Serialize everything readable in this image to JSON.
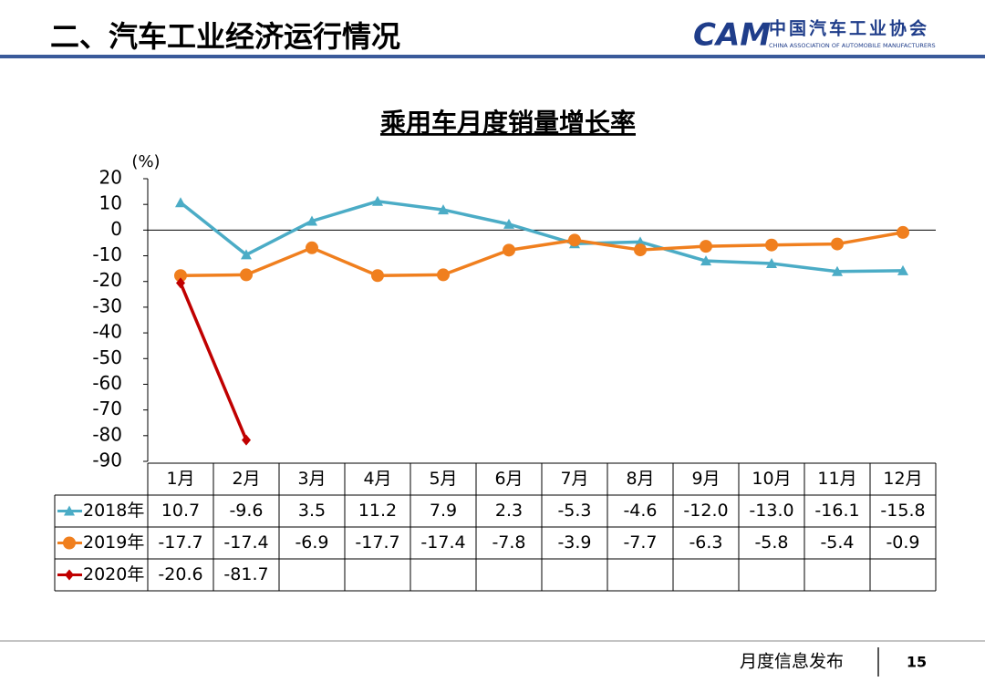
{
  "header": {
    "title": "二、汽车工业经济运行情况",
    "logo_mark": "CAM",
    "logo_cn": "中国汽车工业协会",
    "logo_en": "CHINA ASSOCIATION OF AUTOMOBILE MANUFACTURERS"
  },
  "footer": {
    "text": "月度信息发布",
    "page": 15
  },
  "chart_data": {
    "type": "line",
    "title": "乘用车月度销量增长率",
    "unit": "(%)",
    "categories": [
      "1月",
      "2月",
      "3月",
      "4月",
      "5月",
      "6月",
      "7月",
      "8月",
      "9月",
      "10月",
      "11月",
      "12月"
    ],
    "ylim": [
      -90,
      20
    ],
    "yticks": [
      20,
      10,
      0,
      -10,
      -20,
      -30,
      -40,
      -50,
      -60,
      -70,
      -80,
      -90
    ],
    "grid": false,
    "series": [
      {
        "name": "2018年",
        "color": "#4bacc6",
        "marker": "triangle",
        "values": [
          10.7,
          -9.6,
          3.5,
          11.2,
          7.9,
          2.3,
          -5.3,
          -4.6,
          -12.0,
          -13.0,
          -16.1,
          -15.8
        ],
        "value_labels": [
          "10.7",
          "-9.6",
          "3.5",
          "11.2",
          "7.9",
          "2.3",
          "-5.3",
          "-4.6",
          "-12.0",
          "-13.0",
          "-16.1",
          "-15.8"
        ]
      },
      {
        "name": "2019年",
        "color": "#f07f1e",
        "marker": "circle",
        "values": [
          -17.7,
          -17.4,
          -6.9,
          -17.7,
          -17.4,
          -7.8,
          -3.9,
          -7.7,
          -6.3,
          -5.8,
          -5.4,
          -0.9
        ],
        "value_labels": [
          "-17.7",
          "-17.4",
          "-6.9",
          "-17.7",
          "-17.4",
          "-7.8",
          "-3.9",
          "-7.7",
          "-6.3",
          "-5.8",
          "-5.4",
          "-0.9"
        ]
      },
      {
        "name": "2020年",
        "color": "#c00000",
        "marker": "diamond",
        "values": [
          -20.6,
          -81.7,
          null,
          null,
          null,
          null,
          null,
          null,
          null,
          null,
          null,
          null
        ],
        "value_labels": [
          "-20.6",
          "-81.7",
          null,
          null,
          null,
          null,
          null,
          null,
          null,
          null,
          null,
          null
        ]
      }
    ]
  }
}
